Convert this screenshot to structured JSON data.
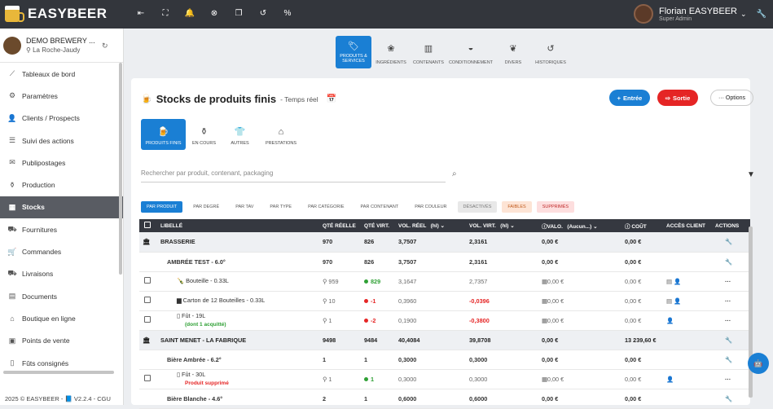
{
  "app": {
    "name": "EASYBEER"
  },
  "user": {
    "name": "Florian EASYBEER",
    "role": "Super Admin"
  },
  "brewery": {
    "name": "DEMO BREWERY ...",
    "location": "La Roche-Jaudy"
  },
  "sidebar": {
    "items": [
      {
        "label": "Tableaux de bord",
        "icon": "chart-icon"
      },
      {
        "label": "Paramètres",
        "icon": "gear-icon"
      },
      {
        "label": "Clients / Prospects",
        "icon": "person-icon"
      },
      {
        "label": "Suivi des actions",
        "icon": "list-icon"
      },
      {
        "label": "Publipostages",
        "icon": "mail-icon"
      },
      {
        "label": "Production",
        "icon": "tank-icon"
      },
      {
        "label": "Stocks",
        "icon": "warehouse-icon"
      },
      {
        "label": "Fournitures",
        "icon": "truck-icon"
      },
      {
        "label": "Commandes",
        "icon": "cart-icon"
      },
      {
        "label": "Livraisons",
        "icon": "delivery-icon"
      },
      {
        "label": "Documents",
        "icon": "document-icon"
      },
      {
        "label": "Boutique en ligne",
        "icon": "shop-icon"
      },
      {
        "label": "Points de vente",
        "icon": "store-icon"
      },
      {
        "label": "Fûts consignés",
        "icon": "keg-icon"
      }
    ]
  },
  "footer": {
    "text": "2025 © EASYBEER - 📘 V2.2.4 - CGU"
  },
  "modules": [
    {
      "label": "PRODUITS & SERVICES"
    },
    {
      "label": "INGRÉDIENTS"
    },
    {
      "label": "CONTENANTS"
    },
    {
      "label": "CONDITIONNEMENT"
    },
    {
      "label": "DIVERS"
    },
    {
      "label": "HISTORIQUES"
    }
  ],
  "page": {
    "title": "Stocks de produits finis",
    "subtitle": "- Temps réel"
  },
  "actions": {
    "entree": "Entrée",
    "sortie": "Sortie",
    "options": "··· Options"
  },
  "subtabs": [
    "PRODUITS FINIS",
    "EN COURS",
    "AUTRES",
    "PRESTATIONS"
  ],
  "search": {
    "placeholder": "Rechercher par produit, contenant, packaging"
  },
  "filters": [
    "PAR PRODUIT",
    "PAR DEGRÉ",
    "PAR TAV",
    "PAR TYPE",
    "PAR CATÉGORIE",
    "PAR CONTENANT",
    "PAR COULEUR",
    "DÉSACTIVÉS",
    "FAIBLES",
    "SUPPRIMÉS"
  ],
  "table": {
    "headers": [
      "LIBELLÉ",
      "QTÉ RÉELLE",
      "QTÉ VIRT.",
      "VOL. RÉEL",
      "(hl)",
      "VOL. VIRT.",
      "(hl)",
      "VALO.",
      "(Aucun...)",
      "COÛT",
      "ACCÈS CLIENT",
      "ACTIONS"
    ],
    "rows": [
      {
        "type": "group",
        "label": "BRASSERIE",
        "qte_reelle": "970",
        "qte_virt": "826",
        "vol_reel": "3,7507",
        "vol_virt": "2,3161",
        "valo": "0,00 €",
        "cout": "0,00 €"
      },
      {
        "type": "sub",
        "label": "AMBRÉE TEST - 6.0°",
        "qte_reelle": "970",
        "qte_virt": "826",
        "vol_reel": "3,7507",
        "vol_virt": "2,3161",
        "valo": "0,00 €",
        "cout": "0,00 €"
      },
      {
        "type": "item",
        "label": "Bouteille - 0.33L",
        "note": "",
        "qte_reelle": "959",
        "qte_virt": "829",
        "vol_reel": "3,1647",
        "vol_virt": "2,7357",
        "valo": "0,00 €",
        "cout": "0,00 €"
      },
      {
        "type": "item",
        "label": "Carton de 12 Bouteilles - 0.33L",
        "note": "",
        "qte_reelle": "10",
        "qte_virt": "-1",
        "vol_reel": "0,3960",
        "vol_virt": "-0,0396",
        "valo": "0,00 €",
        "cout": "0,00 €"
      },
      {
        "type": "item",
        "label": "Fût - 19L",
        "note": "(dont 1 acquitté)",
        "qte_reelle": "1",
        "qte_virt": "-2",
        "vol_reel": "0,1900",
        "vol_virt": "-0,3800",
        "valo": "0,00 €",
        "cout": "0,00 €"
      },
      {
        "type": "group",
        "label": "SAINT MENET - LA FABRIQUE",
        "qte_reelle": "9498",
        "qte_virt": "9484",
        "vol_reel": "40,4084",
        "vol_virt": "39,8708",
        "valo": "0,00 €",
        "cout": "13 239,60 €"
      },
      {
        "type": "sub",
        "label": "Bière Ambrée - 6.2°",
        "qte_reelle": "1",
        "qte_virt": "1",
        "vol_reel": "0,3000",
        "vol_virt": "0,3000",
        "valo": "0,00 €",
        "cout": "0,00 €"
      },
      {
        "type": "item",
        "label": "Fût - 30L",
        "note": "Produit supprimé",
        "qte_reelle": "1",
        "qte_virt": "1",
        "vol_reel": "0,3000",
        "vol_virt": "0,3000",
        "valo": "0,00 €",
        "cout": "0,00 €"
      },
      {
        "type": "sub",
        "label": "Bière Blanche - 4.6°",
        "qte_reelle": "2",
        "qte_virt": "1",
        "vol_reel": "0,6000",
        "vol_virt": "0,6000",
        "valo": "0,00 €",
        "cout": "0,00 €"
      }
    ]
  },
  "colors": {
    "accent": "#1a7fd4",
    "danger": "#e52525",
    "success": "#2fa035",
    "topbar": "#33363c"
  }
}
